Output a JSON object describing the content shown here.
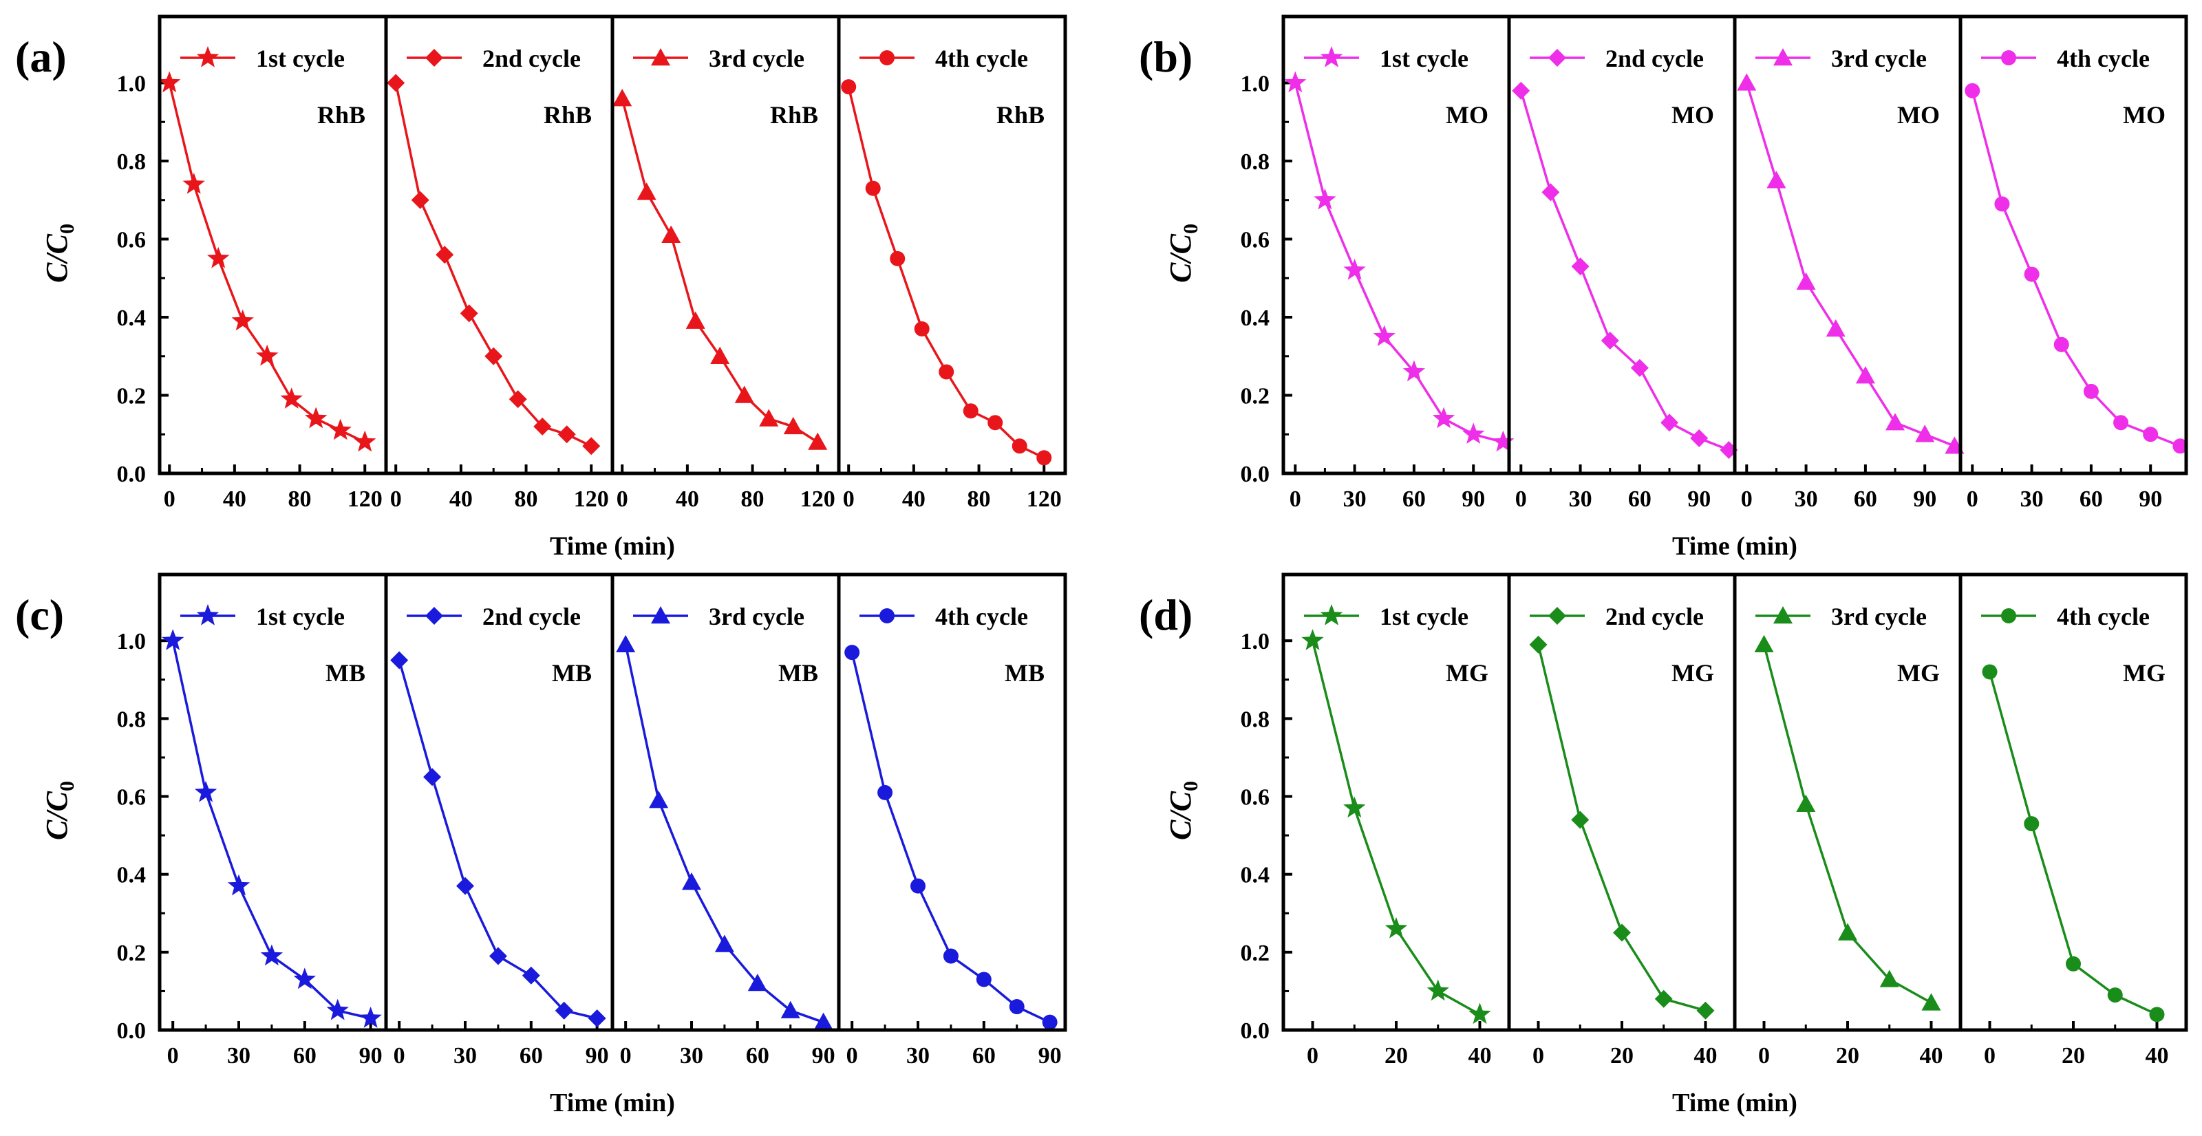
{
  "figure": {
    "xlabel": "Time (min)",
    "ylabel": "C/C",
    "ylabel_sub": "0",
    "y_ticks": [
      "0.0",
      "0.2",
      "0.4",
      "0.6",
      "0.8",
      "1.0"
    ]
  },
  "chart_data": [
    {
      "type": "line",
      "panel_label": "(a)",
      "dye": "RhB",
      "color": "#e8161b",
      "ylim": [
        0,
        1.17
      ],
      "xlim": [
        -6,
        133
      ],
      "x_ticks": [
        0,
        40,
        80,
        120
      ],
      "x_tick_labels": [
        "0",
        "40",
        "80",
        "120"
      ],
      "series": [
        {
          "name": "1st cycle",
          "marker": "star",
          "x": [
            0,
            15,
            30,
            45,
            60,
            75,
            90,
            105,
            120
          ],
          "y": [
            1.0,
            0.74,
            0.55,
            0.39,
            0.3,
            0.19,
            0.14,
            0.11,
            0.08
          ]
        },
        {
          "name": "2nd cycle",
          "marker": "diamond",
          "x": [
            0,
            15,
            30,
            45,
            60,
            75,
            90,
            105,
            120
          ],
          "y": [
            1.0,
            0.7,
            0.56,
            0.41,
            0.3,
            0.19,
            0.12,
            0.1,
            0.07
          ]
        },
        {
          "name": "3rd cycle",
          "marker": "triangle",
          "x": [
            0,
            15,
            30,
            45,
            60,
            75,
            90,
            105,
            120
          ],
          "y": [
            0.96,
            0.72,
            0.61,
            0.39,
            0.3,
            0.2,
            0.14,
            0.12,
            0.08
          ]
        },
        {
          "name": "4th cycle",
          "marker": "circle",
          "x": [
            0,
            15,
            30,
            45,
            60,
            75,
            90,
            105,
            120
          ],
          "y": [
            0.99,
            0.73,
            0.55,
            0.37,
            0.26,
            0.16,
            0.13,
            0.07,
            0.04
          ]
        }
      ]
    },
    {
      "type": "line",
      "panel_label": "(b)",
      "dye": "MO",
      "color": "#ee2ee8",
      "ylim": [
        0,
        1.17
      ],
      "xlim": [
        -6,
        108
      ],
      "x_ticks": [
        0,
        30,
        60,
        90
      ],
      "x_tick_labels": [
        "0",
        "30",
        "60",
        "90"
      ],
      "series": [
        {
          "name": "1st cycle",
          "marker": "star",
          "x": [
            0,
            15,
            30,
            45,
            60,
            75,
            90,
            105
          ],
          "y": [
            1.0,
            0.7,
            0.52,
            0.35,
            0.26,
            0.14,
            0.1,
            0.08
          ]
        },
        {
          "name": "2nd cycle",
          "marker": "diamond",
          "x": [
            0,
            15,
            30,
            45,
            60,
            75,
            90,
            105
          ],
          "y": [
            0.98,
            0.72,
            0.53,
            0.34,
            0.27,
            0.13,
            0.09,
            0.06
          ]
        },
        {
          "name": "3rd cycle",
          "marker": "triangle",
          "x": [
            0,
            15,
            30,
            45,
            60,
            75,
            90,
            105
          ],
          "y": [
            1.0,
            0.75,
            0.49,
            0.37,
            0.25,
            0.13,
            0.1,
            0.07
          ]
        },
        {
          "name": "4th cycle",
          "marker": "circle",
          "x": [
            0,
            15,
            30,
            45,
            60,
            75,
            90,
            105
          ],
          "y": [
            0.98,
            0.69,
            0.51,
            0.33,
            0.21,
            0.13,
            0.1,
            0.07
          ]
        }
      ]
    },
    {
      "type": "line",
      "panel_label": "(c)",
      "dye": "MB",
      "color": "#1a1adc",
      "ylim": [
        0,
        1.17
      ],
      "xlim": [
        -6,
        97
      ],
      "x_ticks": [
        0,
        30,
        60,
        90
      ],
      "x_tick_labels": [
        "0",
        "30",
        "60",
        "90"
      ],
      "series": [
        {
          "name": "1st cycle",
          "marker": "star",
          "x": [
            0,
            15,
            30,
            45,
            60,
            75,
            90
          ],
          "y": [
            1.0,
            0.61,
            0.37,
            0.19,
            0.13,
            0.05,
            0.03
          ]
        },
        {
          "name": "2nd cycle",
          "marker": "diamond",
          "x": [
            0,
            15,
            30,
            45,
            60,
            75,
            90
          ],
          "y": [
            0.95,
            0.65,
            0.37,
            0.19,
            0.14,
            0.05,
            0.03
          ]
        },
        {
          "name": "3rd cycle",
          "marker": "triangle",
          "x": [
            0,
            15,
            30,
            45,
            60,
            75,
            90
          ],
          "y": [
            0.99,
            0.59,
            0.38,
            0.22,
            0.12,
            0.05,
            0.02
          ]
        },
        {
          "name": "4th cycle",
          "marker": "circle",
          "x": [
            0,
            15,
            30,
            45,
            60,
            75,
            90
          ],
          "y": [
            0.97,
            0.61,
            0.37,
            0.19,
            0.13,
            0.06,
            0.02
          ]
        }
      ]
    },
    {
      "type": "line",
      "panel_label": "(d)",
      "dye": "MG",
      "color": "#1a8c1a",
      "ylim": [
        0,
        1.17
      ],
      "xlim": [
        -7,
        47
      ],
      "x_ticks": [
        0,
        20,
        40
      ],
      "x_tick_labels": [
        "0",
        "20",
        "40"
      ],
      "series": [
        {
          "name": "1st cycle",
          "marker": "star",
          "x": [
            0,
            10,
            20,
            30,
            40
          ],
          "y": [
            1.0,
            0.57,
            0.26,
            0.1,
            0.04
          ]
        },
        {
          "name": "2nd cycle",
          "marker": "diamond",
          "x": [
            0,
            10,
            20,
            30,
            40
          ],
          "y": [
            0.99,
            0.54,
            0.25,
            0.08,
            0.05
          ]
        },
        {
          "name": "3rd cycle",
          "marker": "triangle",
          "x": [
            0,
            10,
            20,
            30,
            40
          ],
          "y": [
            0.99,
            0.58,
            0.25,
            0.13,
            0.07
          ]
        },
        {
          "name": "4th cycle",
          "marker": "circle",
          "x": [
            0,
            10,
            20,
            30,
            40
          ],
          "y": [
            0.92,
            0.53,
            0.17,
            0.09,
            0.04
          ]
        }
      ]
    }
  ]
}
